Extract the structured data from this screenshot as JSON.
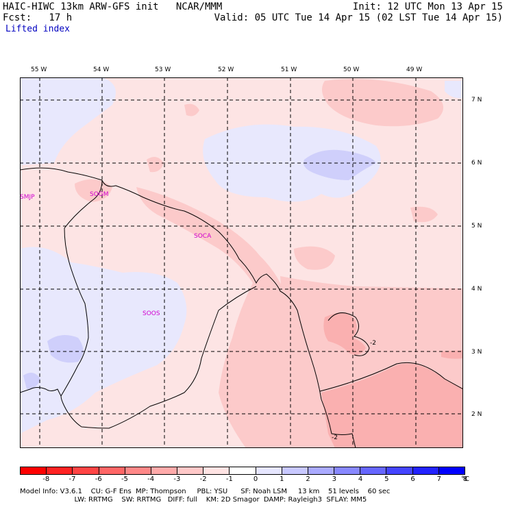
{
  "header": {
    "left_line1": "HAIC-HIWC 13km ARW-GFS init   NCAR/MMM",
    "left_line2": "Fcst:   17 h",
    "right_line1": "Init: 12 UTC Mon 13 Apr 15",
    "right_line2": "Valid: 05 UTC Tue 14 Apr 15 (02 LST Tue 14 Apr 15)",
    "field_name": "Lifted index"
  },
  "axes": {
    "longitudes": [
      "55 W",
      "54 W",
      "53 W",
      "52 W",
      "51 W",
      "50 W",
      "49 W"
    ],
    "latitudes": [
      "7 N",
      "6 N",
      "5 N",
      "4 N",
      "3 N",
      "2 N"
    ]
  },
  "stations": [
    "SMJP",
    "SOGM",
    "SOCA",
    "SOOS"
  ],
  "contour_labels": [
    "-2",
    "-2"
  ],
  "colorbar": {
    "ticks": [
      "-8",
      "-7",
      "-6",
      "-5",
      "-4",
      "-3",
      "-2",
      "-1",
      "0",
      "1",
      "2",
      "3",
      "4",
      "5",
      "6",
      "7",
      "8"
    ],
    "unit": "°C",
    "colors": [
      "#ff0000",
      "#ff2222",
      "#ff4444",
      "#ff6666",
      "#ff8888",
      "#ffaaaa",
      "#ffc8c8",
      "#ffe3e3",
      "#ffffff",
      "#e6e6ff",
      "#c8c8ff",
      "#aaaaff",
      "#8888ff",
      "#6666ff",
      "#4444ff",
      "#2222ff",
      "#0000ff"
    ]
  },
  "footer": {
    "line1": "Model Info: V3.6.1    CU: G-F Ens  MP: Thompson     PBL: YSU      SF: Noah LSM     13 km    51 levels    60 sec",
    "line2": "                         LW: RRTMG    SW: RRTMG   DIFF: full    KM: 2D Smagor  DAMP: Rayleigh3  SFLAY: MM5"
  },
  "colors": {
    "neg1": "#fde4e4",
    "neg2": "#fccaca",
    "neg3": "#fab0b0",
    "pos1": "#e8e8fd",
    "pos2": "#cfcffb",
    "station": "#d000d0"
  }
}
